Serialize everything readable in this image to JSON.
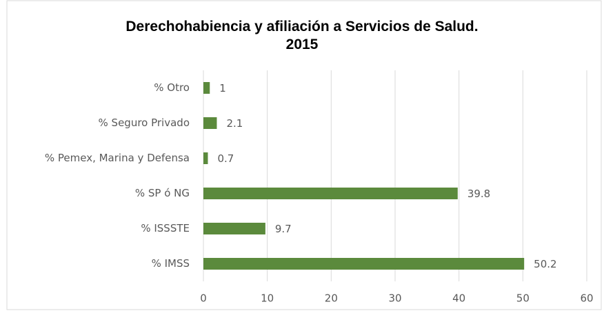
{
  "chart_data": {
    "type": "barh",
    "title": "Derechohabiencia y afiliación a Servicios de Salud.\n2015",
    "categories": [
      "% Otro",
      "% Seguro Privado",
      "% Pemex, Marina y Defensa",
      "% SP ó NG",
      "% ISSSTE",
      "% IMSS"
    ],
    "values": [
      1,
      2.1,
      0.7,
      39.8,
      9.7,
      50.2
    ],
    "color": "#5b8a3c",
    "xlim": [
      0,
      60
    ],
    "xticks": [
      0,
      10,
      20,
      30,
      40,
      50,
      60
    ],
    "grid": true
  }
}
